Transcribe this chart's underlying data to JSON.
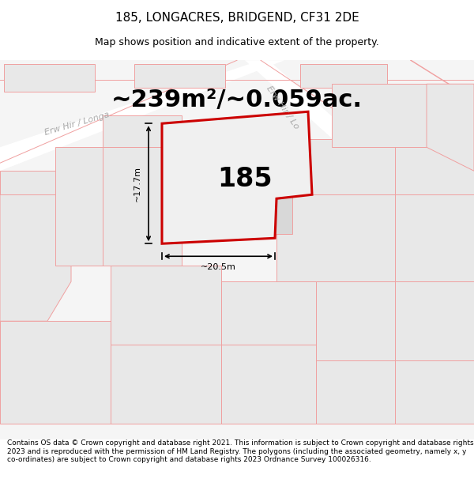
{
  "title": "185, LONGACRES, BRIDGEND, CF31 2DE",
  "subtitle": "Map shows position and indicative extent of the property.",
  "area_text": "~239m²/~0.059ac.",
  "label_185": "185",
  "dim_width": "~20.5m",
  "dim_height": "~17.7m",
  "map_bg": "#f5f5f5",
  "road_bg": "#ffffff",
  "plot_fill_main": "#e8e8e8",
  "plot_fill_inner": "#e0e0e0",
  "prop_edge_color": "#cc0000",
  "other_edge_color": "#f0a0a0",
  "dim_color": "#000000",
  "road_label_color": "#aaaaaa",
  "text_color": "#000000",
  "footer_text": "Contains OS data © Crown copyright and database right 2021. This information is subject to Crown copyright and database rights 2023 and is reproduced with the permission of HM Land Registry. The polygons (including the associated geometry, namely x, y co-ordinates) are subject to Crown copyright and database rights 2023 Ordnance Survey 100026316.",
  "fig_width": 6.0,
  "fig_height": 6.25,
  "title_fontsize": 11,
  "subtitle_fontsize": 9,
  "area_fontsize": 22,
  "label_fontsize": 24,
  "footer_fontsize": 6.5
}
